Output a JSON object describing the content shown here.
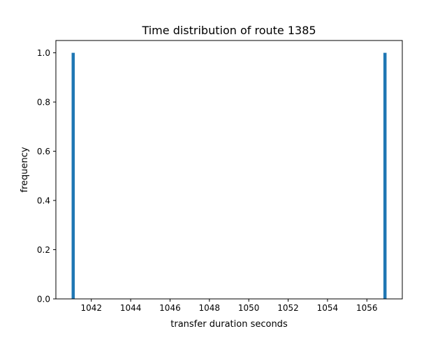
{
  "chart_data": {
    "type": "bar",
    "title": "Time distribution of route 1385",
    "xlabel": "transfer duration seconds",
    "ylabel": "frequency",
    "xlim": [
      1040.2,
      1057.8
    ],
    "ylim": [
      0.0,
      1.05
    ],
    "x_ticks": [
      1042,
      1044,
      1046,
      1048,
      1050,
      1052,
      1054,
      1056
    ],
    "y_ticks": [
      0.0,
      0.2,
      0.4,
      0.6,
      0.8,
      1.0
    ],
    "bins": [
      {
        "start": 1041.0,
        "end": 1041.16,
        "count": 1
      },
      {
        "start": 1056.84,
        "end": 1057.0,
        "count": 1
      }
    ],
    "grid": false,
    "colors": {
      "bar": "#1f77b4"
    }
  }
}
